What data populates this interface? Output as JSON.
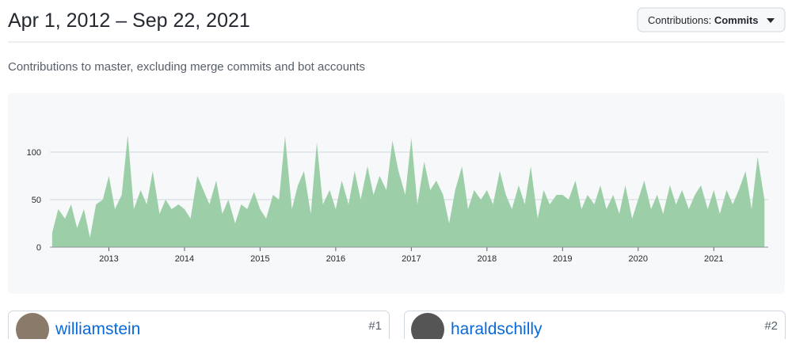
{
  "header": {
    "title": "Apr 1, 2012 – Sep 22, 2021",
    "dropdown_label": "Contributions:",
    "dropdown_value": "Commits"
  },
  "subtitle": "Contributions to master, excluding merge commits and bot accounts",
  "chart_data": {
    "type": "area",
    "color": "#9ccfa8",
    "grid": true,
    "x": [
      2012.25,
      2012.33,
      2012.42,
      2012.5,
      2012.58,
      2012.67,
      2012.75,
      2012.83,
      2012.92,
      2013,
      2013.08,
      2013.17,
      2013.25,
      2013.33,
      2013.42,
      2013.5,
      2013.58,
      2013.67,
      2013.75,
      2013.83,
      2013.92,
      2014,
      2014.08,
      2014.17,
      2014.25,
      2014.33,
      2014.42,
      2014.5,
      2014.58,
      2014.67,
      2014.75,
      2014.83,
      2014.92,
      2015,
      2015.08,
      2015.17,
      2015.25,
      2015.33,
      2015.42,
      2015.5,
      2015.58,
      2015.67,
      2015.75,
      2015.83,
      2015.92,
      2016,
      2016.08,
      2016.17,
      2016.25,
      2016.33,
      2016.42,
      2016.5,
      2016.58,
      2016.67,
      2016.75,
      2016.83,
      2016.92,
      2017,
      2017.08,
      2017.17,
      2017.25,
      2017.33,
      2017.42,
      2017.5,
      2017.58,
      2017.67,
      2017.75,
      2017.83,
      2017.92,
      2018,
      2018.08,
      2018.17,
      2018.25,
      2018.33,
      2018.42,
      2018.5,
      2018.58,
      2018.67,
      2018.75,
      2018.83,
      2018.92,
      2019,
      2019.08,
      2019.17,
      2019.25,
      2019.33,
      2019.42,
      2019.5,
      2019.58,
      2019.67,
      2019.75,
      2019.83,
      2019.92,
      2020,
      2020.08,
      2020.17,
      2020.25,
      2020.33,
      2020.42,
      2020.5,
      2020.58,
      2020.67,
      2020.75,
      2020.83,
      2020.92,
      2021,
      2021.08,
      2021.17,
      2021.25,
      2021.33,
      2021.42,
      2021.5,
      2021.58,
      2021.67
    ],
    "values": [
      15,
      40,
      30,
      45,
      20,
      40,
      10,
      45,
      50,
      75,
      40,
      55,
      118,
      40,
      60,
      45,
      80,
      35,
      50,
      40,
      45,
      40,
      30,
      75,
      60,
      45,
      70,
      35,
      50,
      25,
      45,
      40,
      58,
      40,
      30,
      55,
      50,
      117,
      40,
      65,
      80,
      35,
      110,
      45,
      60,
      40,
      70,
      45,
      80,
      50,
      85,
      55,
      75,
      60,
      112,
      80,
      55,
      115,
      45,
      90,
      60,
      70,
      55,
      25,
      60,
      85,
      40,
      60,
      50,
      60,
      45,
      80,
      55,
      40,
      65,
      45,
      85,
      30,
      60,
      45,
      55,
      55,
      50,
      70,
      40,
      55,
      45,
      65,
      40,
      55,
      35,
      65,
      30,
      50,
      70,
      40,
      55,
      35,
      65,
      45,
      60,
      40,
      55,
      65,
      40,
      60,
      35,
      60,
      45,
      60,
      80,
      40,
      95,
      50
    ],
    "xlim": [
      2012.22,
      2021.72
    ],
    "xticks": [
      2013,
      2014,
      2015,
      2016,
      2017,
      2018,
      2019,
      2020,
      2021
    ],
    "ylim": [
      0,
      150
    ],
    "yticks": [
      0,
      50,
      100
    ]
  },
  "contributors": [
    {
      "name": "williamstein",
      "rank": "#1"
    },
    {
      "name": "haraldschilly",
      "rank": "#2"
    }
  ]
}
